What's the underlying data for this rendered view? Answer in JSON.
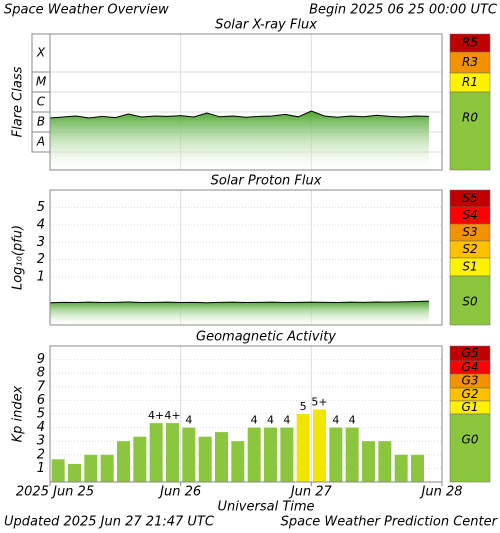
{
  "header": {
    "title": "Space Weather Overview",
    "begin": "Begin 2025 06 25 00:00 UTC"
  },
  "footer": {
    "updated": "Updated 2025 Jun 27 21:47 UTC",
    "credit": "Space Weather Prediction Center"
  },
  "chart_data": [
    {
      "type": "line",
      "title": "Solar X-ray Flux",
      "y_label": "Flare Class",
      "xlim": [
        0,
        3
      ],
      "ylim": [
        -9.4,
        -2.6
      ],
      "yticks": [
        {
          "value": -8,
          "label": "A"
        },
        {
          "value": -7,
          "label": "B"
        },
        {
          "value": -6,
          "label": "C"
        },
        {
          "value": -5,
          "label": "M"
        },
        {
          "value": -4,
          "label": "X"
        }
      ],
      "grid": true,
      "color": "#000000",
      "fill_color": "#5fb030",
      "x": [
        0,
        0.1,
        0.2,
        0.3,
        0.4,
        0.5,
        0.6,
        0.7,
        0.8,
        0.9,
        1.0,
        1.1,
        1.2,
        1.3,
        1.4,
        1.5,
        1.6,
        1.7,
        1.8,
        1.9,
        2.0,
        2.1,
        2.2,
        2.3,
        2.4,
        2.5,
        2.6,
        2.7,
        2.8,
        2.9
      ],
      "values": [
        -6.8,
        -6.75,
        -6.7,
        -6.8,
        -6.72,
        -6.78,
        -6.6,
        -6.75,
        -6.7,
        -6.72,
        -6.68,
        -6.75,
        -6.55,
        -6.74,
        -6.7,
        -6.76,
        -6.72,
        -6.7,
        -6.62,
        -6.74,
        -6.45,
        -6.7,
        -6.76,
        -6.7,
        -6.74,
        -6.66,
        -6.72,
        -6.75,
        -6.7,
        -6.72
      ],
      "scale": [
        {
          "label": "R5",
          "color": "#c00000"
        },
        {
          "label": "R3",
          "color": "#f39200"
        },
        {
          "label": "R1",
          "color": "#fff200"
        },
        {
          "label": "R0",
          "color": "#8cc63f"
        }
      ]
    },
    {
      "type": "line",
      "title": "Solar Proton Flux",
      "y_label": "Log₁₀(pfu)",
      "xlim": [
        0,
        3
      ],
      "ylim": [
        -1.75,
        6
      ],
      "yticks": [
        1,
        2,
        3,
        4,
        5
      ],
      "grid": true,
      "color": "#000000",
      "fill_color": "#5fb030",
      "x": [
        0,
        0.1,
        0.2,
        0.3,
        0.4,
        0.5,
        0.6,
        0.7,
        0.8,
        0.9,
        1.0,
        1.1,
        1.2,
        1.3,
        1.4,
        1.5,
        1.6,
        1.7,
        1.8,
        1.9,
        2.0,
        2.1,
        2.2,
        2.3,
        2.4,
        2.5,
        2.6,
        2.7,
        2.8,
        2.9
      ],
      "values": [
        -0.47,
        -0.45,
        -0.46,
        -0.44,
        -0.46,
        -0.45,
        -0.43,
        -0.46,
        -0.45,
        -0.44,
        -0.46,
        -0.45,
        -0.47,
        -0.45,
        -0.44,
        -0.46,
        -0.45,
        -0.44,
        -0.46,
        -0.45,
        -0.44,
        -0.45,
        -0.46,
        -0.44,
        -0.45,
        -0.43,
        -0.44,
        -0.42,
        -0.4,
        -0.38
      ],
      "scale": [
        {
          "label": "S5",
          "color": "#c00000"
        },
        {
          "label": "S4",
          "color": "#ff0000"
        },
        {
          "label": "S3",
          "color": "#f39200"
        },
        {
          "label": "S2",
          "color": "#ffc000"
        },
        {
          "label": "S1",
          "color": "#fff200"
        },
        {
          "label": "S0",
          "color": "#8cc63f"
        }
      ]
    },
    {
      "type": "bar",
      "title": "Geomagnetic Activity",
      "y_label": "Kp index",
      "x_label": "Universal Time",
      "xlim": [
        0,
        3
      ],
      "ylim": [
        0,
        10
      ],
      "xticks": [
        {
          "value": 0,
          "label": "2025 Jun 25"
        },
        {
          "value": 1,
          "label": "Jun 26"
        },
        {
          "value": 2,
          "label": "Jun 27"
        },
        {
          "value": 3,
          "label": "Jun 28"
        }
      ],
      "yticks": [
        1,
        2,
        3,
        4,
        5,
        6,
        7,
        8,
        9
      ],
      "grid": true,
      "x": [
        0.0625,
        0.1875,
        0.3125,
        0.4375,
        0.5625,
        0.6875,
        0.8125,
        0.9375,
        1.0625,
        1.1875,
        1.3125,
        1.4375,
        1.5625,
        1.6875,
        1.8125,
        1.9375,
        2.0625,
        2.1875,
        2.3125,
        2.4375,
        2.5625,
        2.6875,
        2.8125,
        2.9375
      ],
      "values": [
        1.67,
        1.33,
        2,
        2,
        3,
        3.33,
        4.33,
        4.33,
        4,
        3.33,
        3.67,
        3,
        4,
        4,
        4,
        5,
        5.33,
        4,
        4,
        3,
        3,
        2,
        2,
        null
      ],
      "value_labels": [
        null,
        null,
        null,
        null,
        null,
        null,
        "4+",
        "4+",
        "4",
        null,
        null,
        null,
        "4",
        "4",
        "4",
        "5",
        "5+",
        "4",
        "4",
        null,
        null,
        null,
        null,
        null
      ],
      "colors": [
        "#8cc63f",
        "#8cc63f",
        "#8cc63f",
        "#8cc63f",
        "#8cc63f",
        "#8cc63f",
        "#8cc63f",
        "#8cc63f",
        "#8cc63f",
        "#8cc63f",
        "#8cc63f",
        "#8cc63f",
        "#8cc63f",
        "#8cc63f",
        "#8cc63f",
        "#f2e600",
        "#f2e600",
        "#8cc63f",
        "#8cc63f",
        "#8cc63f",
        "#8cc63f",
        "#8cc63f",
        "#8cc63f",
        "#8cc63f"
      ],
      "scale": [
        {
          "label": "G5",
          "color": "#c00000"
        },
        {
          "label": "G4",
          "color": "#ff0000"
        },
        {
          "label": "G3",
          "color": "#f39200"
        },
        {
          "label": "G2",
          "color": "#ffc000"
        },
        {
          "label": "G1",
          "color": "#fff200"
        },
        {
          "label": "G0",
          "color": "#8cc63f"
        }
      ]
    }
  ]
}
